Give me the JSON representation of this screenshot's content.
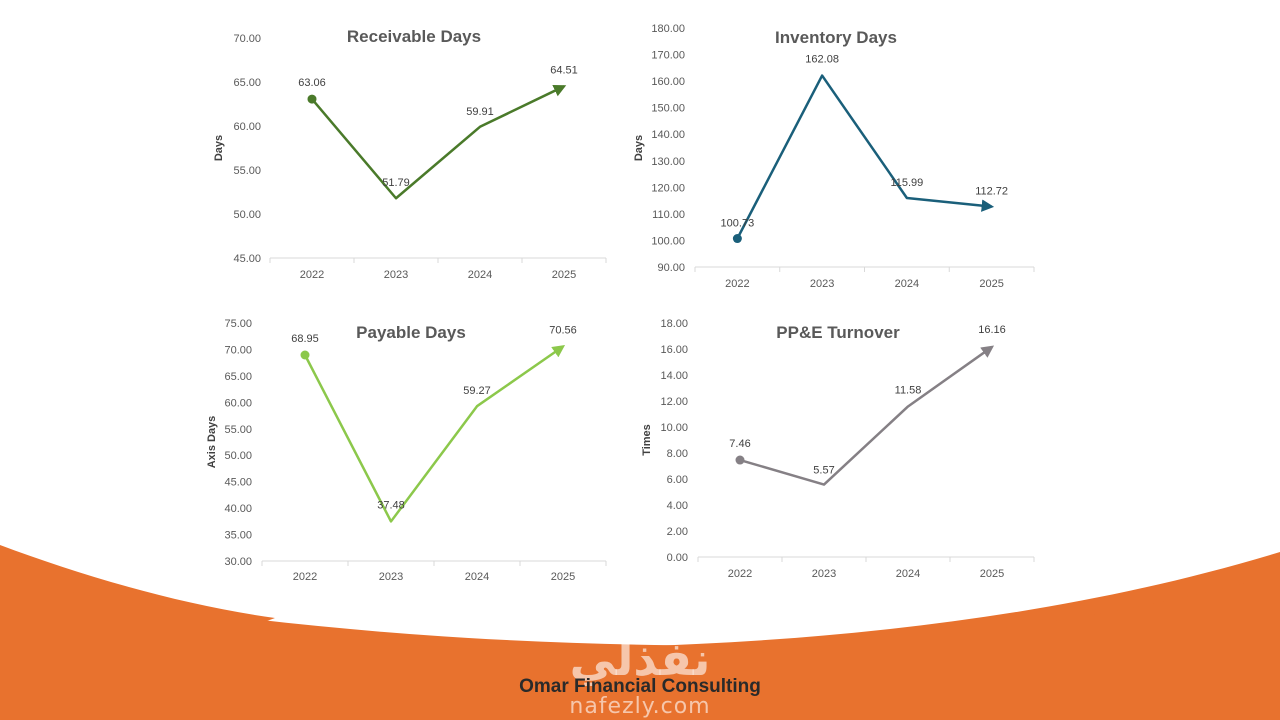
{
  "colors": {
    "accent": "#e8722e",
    "receivable": "#4a7a2a",
    "inventory": "#1a5f7a",
    "payable": "#8cc84b",
    "ppe": "#858085"
  },
  "footer": {
    "company": "Omar Financial Consulting"
  },
  "watermark": {
    "logo": "نفذلي",
    "url": "nafezly.com"
  },
  "chart_data": [
    {
      "type": "line",
      "title": "Receivable Days",
      "ylabel": "Days",
      "categories": [
        "2022",
        "2023",
        "2024",
        "2025"
      ],
      "values": [
        63.06,
        51.79,
        59.91,
        64.51
      ],
      "labels": [
        "63.06",
        "51.79",
        "59.91",
        "64.51"
      ],
      "ylim": [
        45,
        70
      ],
      "yticks": [
        "45.00",
        "50.00",
        "55.00",
        "60.00",
        "65.00",
        "70.00"
      ],
      "color": "#4a7a2a",
      "grid": false
    },
    {
      "type": "line",
      "title": "Inventory Days",
      "ylabel": "Days",
      "categories": [
        "2022",
        "2023",
        "2024",
        "2025"
      ],
      "values": [
        100.73,
        162.08,
        115.99,
        112.72
      ],
      "labels": [
        "100.73",
        "162.08",
        "115.99",
        "112.72"
      ],
      "ylim": [
        90,
        180
      ],
      "yticks": [
        "90.00",
        "100.00",
        "110.00",
        "120.00",
        "130.00",
        "140.00",
        "150.00",
        "160.00",
        "170.00",
        "180.00"
      ],
      "color": "#1a5f7a",
      "grid": false
    },
    {
      "type": "line",
      "title": "Payable Days",
      "ylabel": "Axis Days",
      "categories": [
        "2022",
        "2023",
        "2024",
        "2025"
      ],
      "values": [
        68.95,
        37.48,
        59.27,
        70.56
      ],
      "labels": [
        "68.95",
        "37.48",
        "59.27",
        "70.56"
      ],
      "ylim": [
        30,
        75
      ],
      "yticks": [
        "30.00",
        "35.00",
        "40.00",
        "45.00",
        "50.00",
        "55.00",
        "60.00",
        "65.00",
        "70.00",
        "75.00"
      ],
      "color": "#8cc84b",
      "grid": false
    },
    {
      "type": "line",
      "title": "PP&E Turnover",
      "ylabel": "Times",
      "categories": [
        "2022",
        "2023",
        "2024",
        "2025"
      ],
      "values": [
        7.46,
        5.57,
        11.58,
        16.16
      ],
      "labels": [
        "7.46",
        "5.57",
        "11.58",
        "16.16"
      ],
      "ylim": [
        0,
        18
      ],
      "yticks": [
        "0.00",
        "2.00",
        "4.00",
        "6.00",
        "8.00",
        "10.00",
        "12.00",
        "14.00",
        "16.00",
        "18.00"
      ],
      "color": "#858085",
      "grid": false
    }
  ]
}
